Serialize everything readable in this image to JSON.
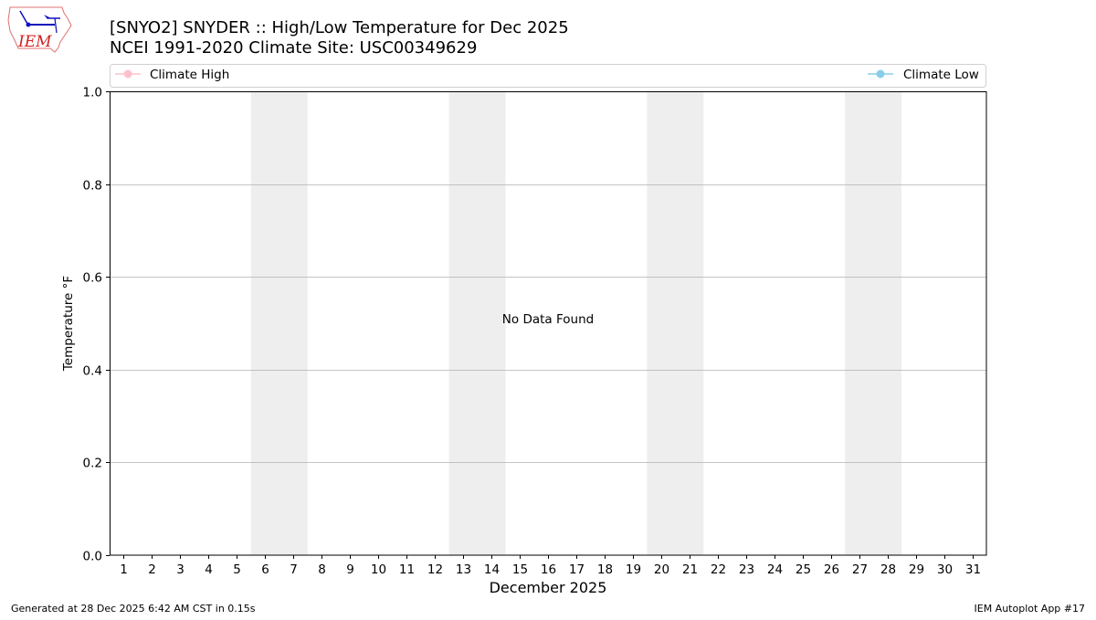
{
  "logo": {
    "text": "IEM"
  },
  "title": {
    "line1": "[SNYO2] SNYDER :: High/Low Temperature for Dec 2025",
    "line2": "NCEI 1991-2020 Climate Site: USC00349629"
  },
  "footer": {
    "left": "Generated at 28 Dec 2025 6:42 AM CST in 0.15s",
    "right": "IEM Autoplot App #17"
  },
  "chart_data": {
    "type": "line",
    "title": "[SNYO2] SNYDER :: High/Low Temperature for Dec 2025",
    "subtitle": "NCEI 1991-2020 Climate Site: USC00349629",
    "xlabel": "December 2025",
    "ylabel": "Temperature °F",
    "xlim": [
      0.5,
      31.5
    ],
    "ylim": [
      0,
      1
    ],
    "xticks": [
      1,
      2,
      3,
      4,
      5,
      6,
      7,
      8,
      9,
      10,
      11,
      12,
      13,
      14,
      15,
      16,
      17,
      18,
      19,
      20,
      21,
      22,
      23,
      24,
      25,
      26,
      27,
      28,
      29,
      30,
      31
    ],
    "yticks": [
      "0.0",
      "0.2",
      "0.4",
      "0.6",
      "0.8",
      "1.0"
    ],
    "grid": "horizontal",
    "legend_placement": "top",
    "series": [
      {
        "name": "Climate High",
        "color": "#ffc0cb",
        "values": []
      },
      {
        "name": "Climate Low",
        "color": "#87ceeb",
        "values": []
      }
    ],
    "weekend_shading": [
      [
        5.5,
        7.5
      ],
      [
        12.5,
        14.5
      ],
      [
        19.5,
        21.5
      ],
      [
        26.5,
        28.5
      ]
    ],
    "shading_color": "#eeeeee",
    "annotation": "No Data Found"
  }
}
